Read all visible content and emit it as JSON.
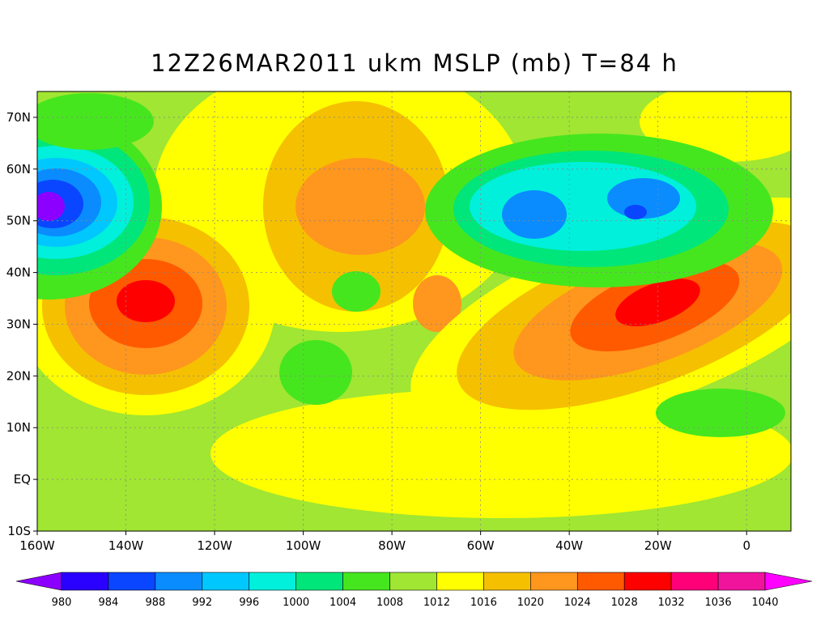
{
  "title": "12Z26MAR2011 ukm MSLP (mb) T=84 h",
  "map": {
    "lon_range": [
      -160,
      10
    ],
    "lat_range": [
      -10,
      75
    ],
    "lon_ticks": [
      {
        "value": -160,
        "label": "160W"
      },
      {
        "value": -140,
        "label": "140W"
      },
      {
        "value": -120,
        "label": "120W"
      },
      {
        "value": -100,
        "label": "100W"
      },
      {
        "value": -80,
        "label": "80W"
      },
      {
        "value": -60,
        "label": "60W"
      },
      {
        "value": -40,
        "label": "40W"
      },
      {
        "value": -20,
        "label": "20W"
      },
      0
    ],
    "lat_ticks": [
      {
        "value": -10,
        "label": "10S"
      },
      {
        "value": 0,
        "label": "EQ"
      },
      {
        "value": 10,
        "label": "10N"
      },
      {
        "value": 20,
        "label": "20N"
      },
      {
        "value": 30,
        "label": "30N"
      },
      {
        "value": 40,
        "label": "40N"
      },
      {
        "value": 50,
        "label": "50N"
      },
      {
        "value": 60,
        "label": "60N"
      },
      {
        "value": 70,
        "label": "70N"
      }
    ],
    "grid": true
  },
  "colorbar": {
    "levels": [
      980,
      984,
      988,
      992,
      996,
      1000,
      1004,
      1008,
      1012,
      1016,
      1020,
      1024,
      1028,
      1032,
      1036,
      1040
    ],
    "colors": [
      "#8c00ff",
      "#2a00ff",
      "#0a46ff",
      "#0a8cff",
      "#00c8ff",
      "#00f0dc",
      "#00e67a",
      "#46e61e",
      "#a0e632",
      "#ffff00",
      "#f5c000",
      "#ff961e",
      "#ff5a00",
      "#ff0000",
      "#ff0078",
      "#f0149c",
      "#ff00ff"
    ]
  }
}
